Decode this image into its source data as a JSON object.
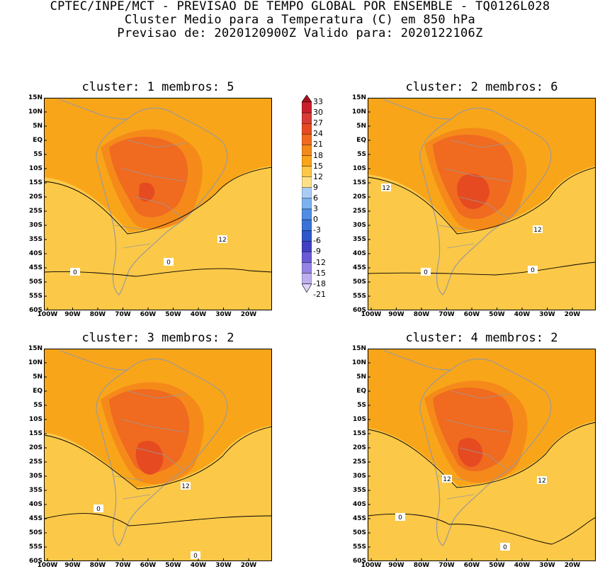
{
  "header": {
    "line1": "CPTEC/INPE/MCT - PREVISAO DE TEMPO GLOBAL POR ENSEMBLE - TQ0126L028",
    "line2": "Cluster Medio para a Temperatura (C) em 850 hPa",
    "line3": "Previsao de: 2020120900Z   Valido para: 2020122106Z"
  },
  "axes": {
    "lat_labels": [
      "15N",
      "10N",
      "5N",
      "EQ",
      "5S",
      "10S",
      "15S",
      "20S",
      "25S",
      "30S",
      "35S",
      "40S",
      "45S",
      "50S",
      "55S",
      "60S"
    ],
    "lon_labels": [
      "100W",
      "90W",
      "80W",
      "70W",
      "60W",
      "50W",
      "40W",
      "30W",
      "20W"
    ]
  },
  "panels": [
    {
      "id": "c1",
      "title": "cluster: 1   membros: 5",
      "contour_labels": [
        "12",
        "0",
        "0"
      ]
    },
    {
      "id": "c2",
      "title": "cluster: 2   membros: 6",
      "contour_labels": [
        "12",
        "12",
        "0",
        "0"
      ]
    },
    {
      "id": "c3",
      "title": "cluster: 3   membros: 2",
      "contour_labels": [
        "12",
        "0",
        "0"
      ]
    },
    {
      "id": "c4",
      "title": "cluster: 4   membros: 2",
      "contour_labels": [
        "12",
        "12",
        "0",
        "0"
      ]
    }
  ],
  "colorbar": {
    "labels": [
      "33",
      "30",
      "27",
      "24",
      "21",
      "18",
      "15",
      "12",
      "9",
      "6",
      "3",
      "0",
      "-3",
      "-6",
      "-9",
      "-12",
      "-15",
      "-18",
      "-21"
    ],
    "colors": {
      "t33": "#a8101a",
      "t30": "#c8202a",
      "t27": "#d83a34",
      "t24": "#e64a20",
      "t21": "#f06a20",
      "t18": "#f58a1a",
      "t15": "#f9a51a",
      "t12": "#fbc848",
      "t9": "#fde18a",
      "t6": "#a9cdf6",
      "t3": "#7db2ee",
      "t0": "#4f8ee4",
      "tm3": "#3a72d8",
      "tm6": "#2d56c8",
      "tm9": "#4140c4",
      "tm12": "#6a5ad6",
      "tm15": "#9684e4",
      "tm18": "#bdaeee",
      "tm21": "#ddd3f6"
    }
  }
}
